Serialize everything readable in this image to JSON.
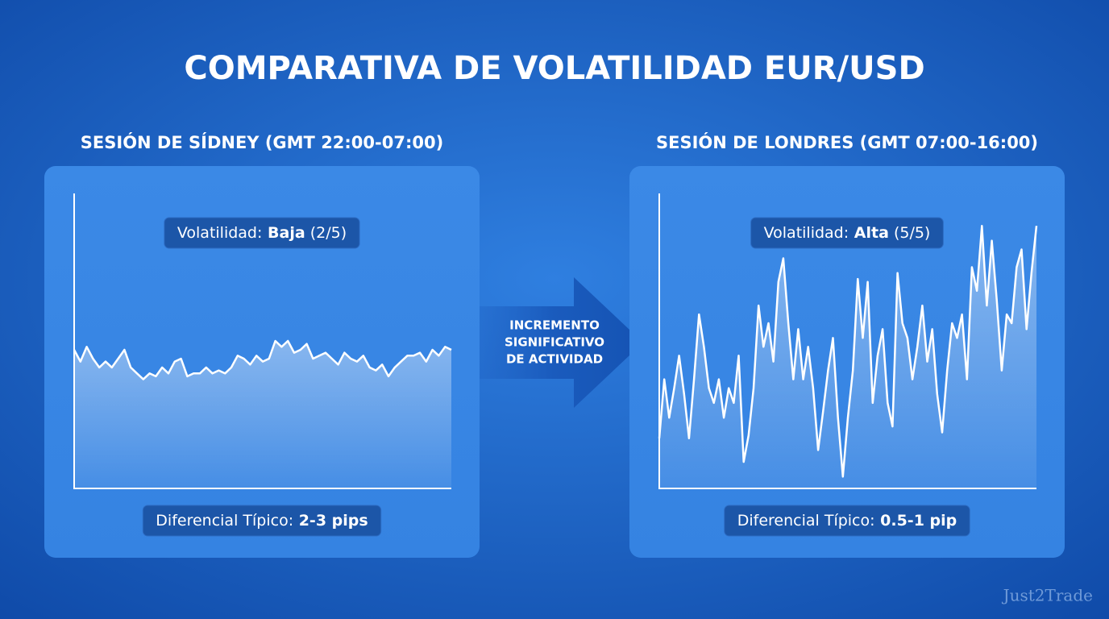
{
  "title": "COMPARATIVA DE VOLATILIDAD EUR/USD",
  "arrow_text": [
    "INCREMENTO",
    "SIGNIFICATIVO",
    "DE ACTIVIDAD"
  ],
  "watermark": "Just2Trade",
  "chart_data": [
    {
      "type": "line",
      "title": "SESIÓN DE SÍDNEY (GMT 22:00-07:00)",
      "color": "#ffffff",
      "ylim": [
        0,
        100
      ],
      "values": [
        47,
        43,
        48,
        44,
        41,
        43,
        41,
        44,
        47,
        41,
        39,
        37,
        39,
        38,
        41,
        39,
        43,
        44,
        38,
        39,
        39,
        41,
        39,
        40,
        39,
        41,
        45,
        44,
        42,
        45,
        43,
        44,
        50,
        48,
        50,
        46,
        47,
        49,
        44,
        45,
        46,
        44,
        42,
        46,
        44,
        43,
        45,
        41,
        40,
        42,
        38,
        41,
        43,
        45,
        45,
        46,
        43,
        47,
        45,
        48,
        47
      ],
      "volatility": {
        "label": "Volatilidad:",
        "level": "Baja",
        "score": "(2/5)"
      },
      "spread": {
        "label": "Diferencial Típico:",
        "value": "2-3 pips"
      }
    },
    {
      "type": "line",
      "title": "SESIÓN DE LONDRES (GMT 07:00-16:00)",
      "color": "#ffffff",
      "ylim": [
        0,
        100
      ],
      "values": [
        17,
        37,
        24,
        34,
        45,
        32,
        17,
        37,
        59,
        48,
        34,
        29,
        37,
        24,
        34,
        29,
        45,
        9,
        18,
        34,
        62,
        48,
        56,
        43,
        70,
        78,
        56,
        37,
        54,
        37,
        48,
        34,
        13,
        26,
        40,
        51,
        24,
        4,
        24,
        40,
        71,
        51,
        70,
        29,
        45,
        54,
        29,
        21,
        73,
        56,
        51,
        37,
        48,
        62,
        43,
        54,
        32,
        19,
        40,
        56,
        51,
        59,
        37,
        75,
        67,
        89,
        62,
        84,
        64,
        40,
        59,
        56,
        75,
        81,
        54,
        73,
        89
      ],
      "volatility": {
        "label": "Volatilidad:",
        "level": "Alta",
        "score": "(5/5)"
      },
      "spread": {
        "label": "Diferencial Típico:",
        "value": "0.5-1 pip"
      }
    }
  ]
}
